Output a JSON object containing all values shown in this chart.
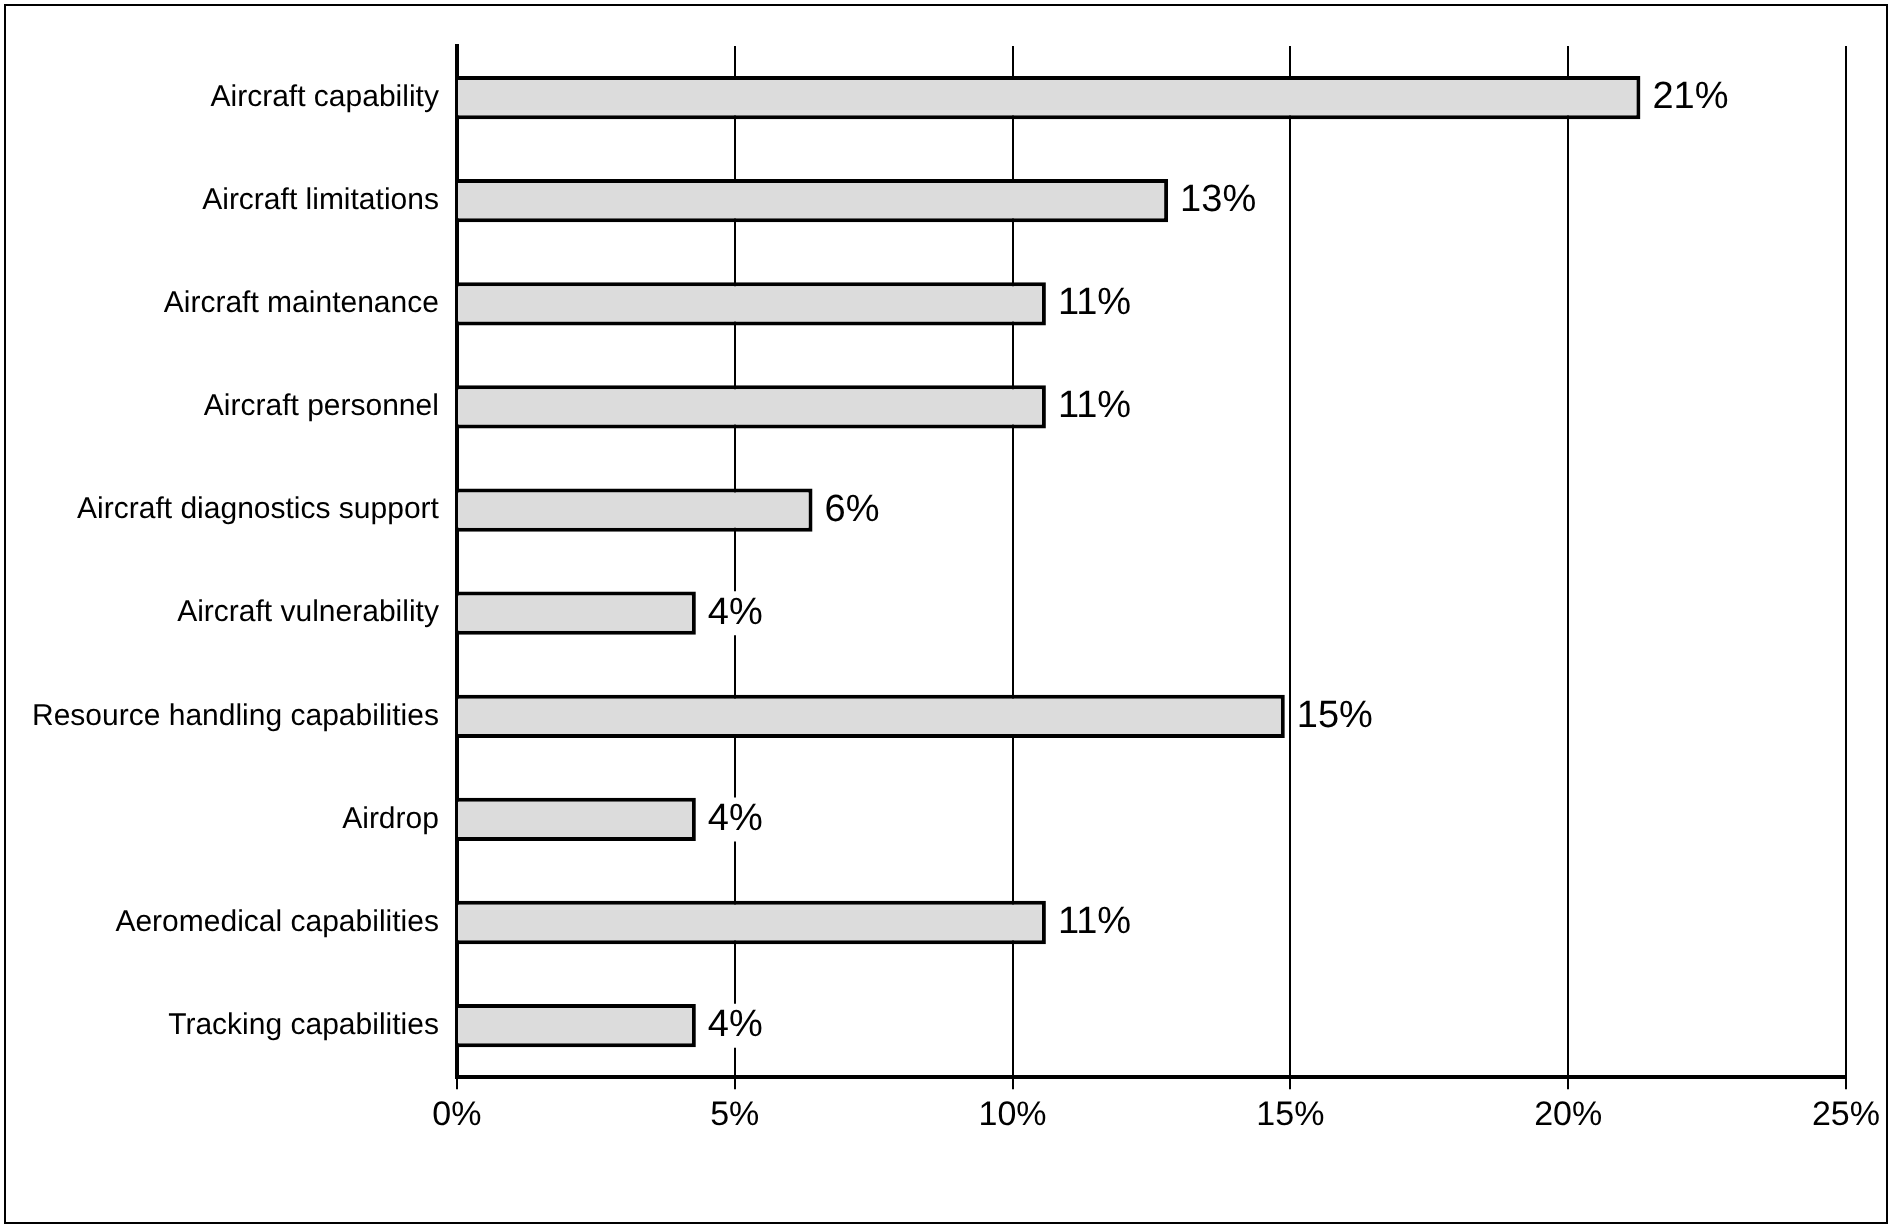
{
  "chart_data": {
    "type": "bar",
    "orientation": "horizontal",
    "categories": [
      "Aircraft capability",
      "Aircraft limitations",
      "Aircraft maintenance",
      "Aircraft personnel",
      "Aircraft diagnostics support",
      "Aircraft vulnerability",
      "Resource handling capabilities",
      "Airdrop",
      "Aeromedical capabilities",
      "Tracking capabilities"
    ],
    "values": [
      21.3,
      12.8,
      10.6,
      10.6,
      6.4,
      4.3,
      14.9,
      4.3,
      10.6,
      4.3
    ],
    "value_labels": [
      "21%",
      "13%",
      "11%",
      "11%",
      "6%",
      "4%",
      "15%",
      "4%",
      "11%",
      "4%"
    ],
    "color": "#dcdcdc",
    "xlim": [
      0,
      25
    ],
    "xticks": [
      {
        "value": 0,
        "label": "0%"
      },
      {
        "value": 5,
        "label": "5%"
      },
      {
        "value": 10,
        "label": "10%"
      },
      {
        "value": 15,
        "label": "15%"
      },
      {
        "value": 20,
        "label": "20%"
      },
      {
        "value": 25,
        "label": "25%"
      }
    ],
    "grid": "x",
    "legend": false
  }
}
